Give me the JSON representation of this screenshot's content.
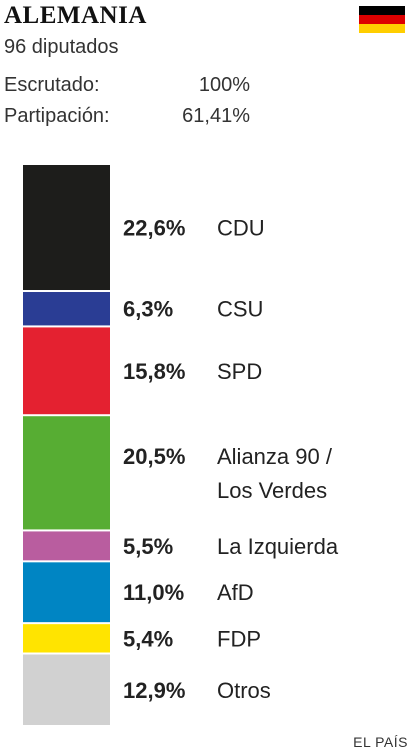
{
  "header": {
    "title": "ALEMANIA",
    "subtitle": "96 diputados",
    "scrutinized_label": "Escrutado:",
    "scrutinized_value": "100%",
    "turnout_label": "Partipación:",
    "turnout_value": "61,41%",
    "flag_icon": "germany-flag-icon",
    "flag_colors": [
      "#000000",
      "#dd0000",
      "#ffce00"
    ]
  },
  "chart_data": {
    "type": "bar",
    "orientation": "stacked-vertical",
    "categories": [
      "CDU",
      "CSU",
      "SPD",
      "Alianza 90 / Los Verdes",
      "La Izquierda",
      "AfD",
      "FDP",
      "Otros"
    ],
    "label_lines": [
      [
        "CDU"
      ],
      [
        "CSU"
      ],
      [
        "SPD"
      ],
      [
        "Alianza 90 /",
        "Los Verdes"
      ],
      [
        "La Izquierda"
      ],
      [
        "AfD"
      ],
      [
        "FDP"
      ],
      [
        "Otros"
      ]
    ],
    "values": [
      22.6,
      6.3,
      15.8,
      20.5,
      5.5,
      11.0,
      5.4,
      12.9
    ],
    "value_labels": [
      "22,6%",
      "6,3%",
      "15,8%",
      "20,5%",
      "5,5%",
      "11,0%",
      "5,4%",
      "12,9%"
    ],
    "colors": [
      "#1d1d1b",
      "#2a3d94",
      "#e42130",
      "#57ad33",
      "#b95d9f",
      "#0085c3",
      "#ffe400",
      "#d1d1d1"
    ]
  },
  "footer": {
    "source": "EL PAÍS"
  }
}
